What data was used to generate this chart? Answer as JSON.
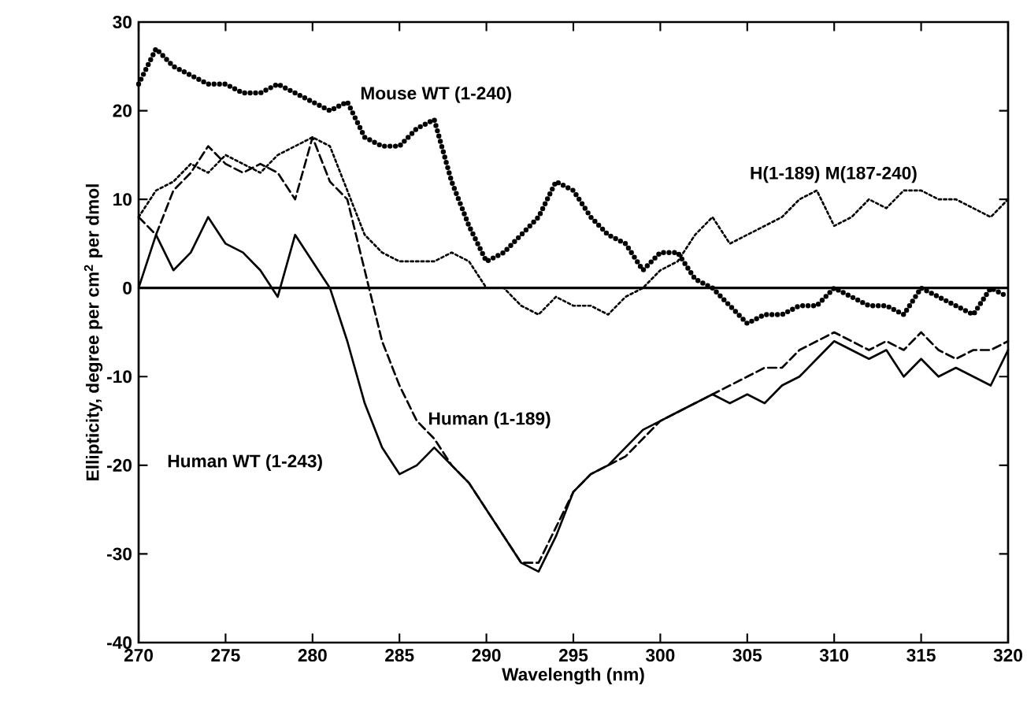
{
  "chart_data": {
    "type": "line",
    "xlabel": "Wavelength (nm)",
    "ylabel": "Ellipticity, degree per cm$^{2}$ per dmol",
    "x": [
      270,
      271,
      272,
      273,
      274,
      275,
      276,
      277,
      278,
      279,
      280,
      281,
      282,
      283,
      284,
      285,
      286,
      287,
      288,
      289,
      290,
      291,
      292,
      293,
      294,
      295,
      296,
      297,
      298,
      299,
      300,
      301,
      302,
      303,
      304,
      305,
      306,
      307,
      308,
      309,
      310,
      311,
      312,
      313,
      314,
      315,
      316,
      317,
      318,
      319,
      320
    ],
    "series": [
      {
        "name": "Mouse WT (1-240)",
        "color": "#000000",
        "line_style": "dotted",
        "values": [
          23,
          27,
          25,
          24,
          23,
          23,
          22,
          22,
          23,
          22,
          21,
          20,
          21,
          17,
          16,
          16,
          18,
          19,
          12,
          7,
          3,
          4,
          6,
          8,
          12,
          11,
          8,
          6,
          5,
          2,
          4,
          4,
          1,
          0,
          -2,
          -4,
          -3,
          -3,
          -2,
          -2,
          0,
          -1,
          -2,
          -2,
          -3,
          0,
          -1,
          -2,
          -3,
          0,
          -1
        ]
      },
      {
        "name": "H(1-189) M(187-240)",
        "color": "#000000",
        "line_style": "dotted",
        "values": [
          8,
          11,
          12,
          14,
          13,
          15,
          14,
          13,
          15,
          16,
          17,
          16,
          11,
          6,
          4,
          3,
          3,
          3,
          4,
          3,
          0,
          0,
          -2,
          -3,
          -1,
          -2,
          -2,
          -3,
          -1,
          0,
          2,
          3,
          6,
          8,
          5,
          6,
          7,
          8,
          10,
          11,
          7,
          8,
          10,
          9,
          11,
          11,
          10,
          10,
          9,
          8,
          10
        ]
      },
      {
        "name": "Human (1-189)",
        "color": "#000000",
        "line_style": "dashed",
        "values": [
          8,
          6,
          11,
          13,
          16,
          14,
          13,
          14,
          13,
          10,
          17,
          12,
          10,
          2,
          -6,
          -11,
          -15,
          -17,
          -20,
          -22,
          -25,
          -28,
          -31,
          -31,
          -27,
          -23,
          -21,
          -20,
          -19,
          -17,
          -15,
          -14,
          -13,
          -12,
          -11,
          -10,
          -9,
          -9,
          -7,
          -6,
          -5,
          -6,
          -7,
          -6,
          -7,
          -5,
          -7,
          -8,
          -7,
          -7,
          -6
        ]
      },
      {
        "name": "Human WT (1-243)",
        "color": "#000000",
        "line_style": "solid",
        "values": [
          0,
          6,
          2,
          4,
          8,
          5,
          4,
          2,
          -1,
          6,
          3,
          0,
          -6,
          -13,
          -18,
          -21,
          -20,
          -18,
          -20,
          -22,
          -25,
          -28,
          -31,
          -32,
          -28,
          -23,
          -21,
          -20,
          -18,
          -16,
          -15,
          -14,
          -13,
          -12,
          -13,
          -12,
          -13,
          -11,
          -10,
          -8,
          -6,
          -7,
          -8,
          -7,
          -10,
          -8,
          -10,
          -9,
          -10,
          -11,
          -7
        ]
      }
    ],
    "xlim": [
      270,
      320
    ],
    "xticks": [
      270,
      275,
      280,
      285,
      290,
      295,
      300,
      305,
      310,
      315,
      320
    ],
    "ylim": [
      -40,
      30
    ],
    "yticks": [
      -40,
      -30,
      -20,
      -10,
      0,
      10,
      20,
      30
    ],
    "ref_lines": [
      {
        "axis": "y",
        "value": 0,
        "color": "#000000"
      }
    ],
    "grid": false
  }
}
